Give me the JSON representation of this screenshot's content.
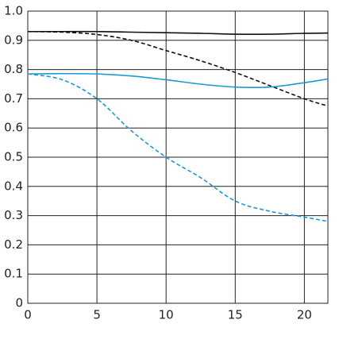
{
  "chart_data": {
    "type": "line",
    "x": [
      0,
      2.5,
      5,
      7.5,
      10,
      12.5,
      15,
      17.5,
      20,
      21.7
    ],
    "series": [
      {
        "color": "#111111",
        "dashed": false,
        "values": [
          0.93,
          0.93,
          0.93,
          0.928,
          0.926,
          0.924,
          0.921,
          0.921,
          0.924,
          0.925
        ]
      },
      {
        "color": "#111111",
        "dashed": true,
        "values": [
          0.93,
          0.928,
          0.92,
          0.9,
          0.865,
          0.83,
          0.79,
          0.745,
          0.7,
          0.675
        ]
      },
      {
        "color": "#1a9ad6",
        "dashed": false,
        "values": [
          0.785,
          0.786,
          0.785,
          0.778,
          0.765,
          0.75,
          0.74,
          0.74,
          0.755,
          0.768
        ]
      },
      {
        "color": "#1a9ad6",
        "dashed": true,
        "values": [
          0.785,
          0.765,
          0.7,
          0.59,
          0.5,
          0.43,
          0.35,
          0.315,
          0.295,
          0.28
        ]
      }
    ],
    "xlim": [
      0,
      21.7
    ],
    "xticks": [
      0,
      5,
      10,
      15,
      20
    ],
    "ylim": [
      0,
      1
    ],
    "yticks": [
      0,
      0.1,
      0.2,
      0.3,
      0.4,
      0.5,
      0.6,
      0.7,
      0.8,
      0.9,
      {
        "value": 1,
        "label": "1.0"
      }
    ],
    "grid": true
  }
}
